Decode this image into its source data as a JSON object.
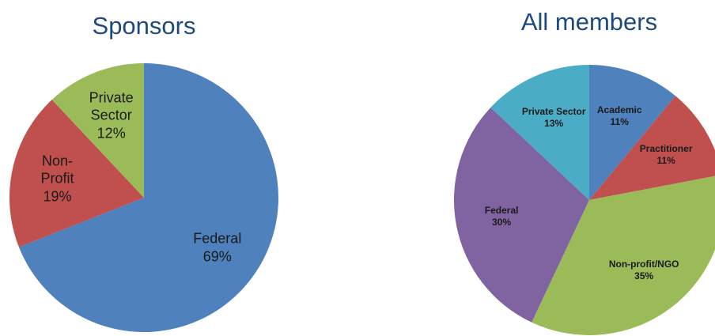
{
  "chart_data": [
    {
      "type": "pie",
      "title": "Sponsors",
      "categories": [
        "Federal",
        "Non-Profit",
        "Private Sector"
      ],
      "values": [
        69,
        19,
        12
      ],
      "value_labels": [
        "69%",
        "19%",
        "12%"
      ],
      "colors": [
        "#4f81bd",
        "#c0504d",
        "#9bbb59"
      ]
    },
    {
      "type": "pie",
      "title": "All members",
      "categories": [
        "Academic",
        "Practitioner",
        "Non-profit/NGO",
        "Federal",
        "Private Sector"
      ],
      "values": [
        11,
        11,
        35,
        30,
        13
      ],
      "value_labels": [
        "11%",
        "11%",
        "35%",
        "30%",
        "13%"
      ],
      "colors": [
        "#4f81bd",
        "#c0504d",
        "#9bbb59",
        "#8064a2",
        "#4bacc6"
      ]
    }
  ]
}
